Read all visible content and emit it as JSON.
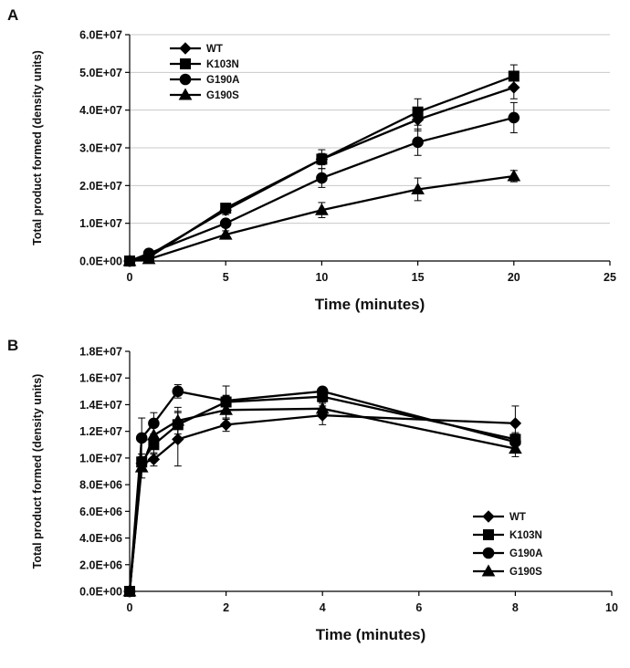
{
  "chart_data": [
    {
      "panel": "A",
      "type": "line",
      "title": "",
      "xlabel": "Time (minutes)",
      "ylabel": "Total product formed (density units)",
      "xlim": [
        0,
        25
      ],
      "ylim": [
        0,
        60000000
      ],
      "xticks": [
        0,
        5,
        10,
        15,
        20,
        25
      ],
      "xtick_labels": [
        "0",
        "5",
        "10",
        "15",
        "20",
        "25"
      ],
      "yticks": [
        0,
        10000000,
        20000000,
        30000000,
        40000000,
        50000000,
        60000000
      ],
      "ytick_labels": [
        "0.0E+00",
        "1.0E+07",
        "2.0E+07",
        "3.0E+07",
        "4.0E+07",
        "5.0E+07",
        "6.0E+07"
      ],
      "grid": true,
      "legend_position": "top-left",
      "x": [
        0,
        1,
        5,
        10,
        15,
        20
      ],
      "series": [
        {
          "name": "WT",
          "marker": "diamond",
          "values": [
            0,
            1500000,
            13500000,
            27000000,
            37500000,
            46000000
          ],
          "errors": [
            0,
            500000,
            1200000,
            1500000,
            3000000,
            3000000
          ]
        },
        {
          "name": "K103N",
          "marker": "square",
          "values": [
            0,
            1000000,
            14000000,
            27000000,
            39500000,
            49000000
          ],
          "errors": [
            0,
            500000,
            1200000,
            2500000,
            3500000,
            3000000
          ]
        },
        {
          "name": "G190A",
          "marker": "circle",
          "values": [
            0,
            2000000,
            10000000,
            22000000,
            31500000,
            38000000
          ],
          "errors": [
            0,
            800000,
            1000000,
            2500000,
            3500000,
            4000000
          ]
        },
        {
          "name": "G190S",
          "marker": "triangle",
          "values": [
            0,
            500000,
            7000000,
            13500000,
            19000000,
            22500000
          ],
          "errors": [
            0,
            300000,
            1000000,
            2000000,
            3000000,
            1500000
          ]
        }
      ]
    },
    {
      "panel": "B",
      "type": "line",
      "title": "",
      "xlabel": "Time (minutes)",
      "ylabel": "Total product formed (density units)",
      "xlim": [
        0,
        10
      ],
      "ylim": [
        0,
        18000000
      ],
      "xticks": [
        0,
        2,
        4,
        6,
        8,
        10
      ],
      "xtick_labels": [
        "0",
        "2",
        "4",
        "6",
        "8",
        "10"
      ],
      "yticks": [
        0,
        2000000,
        4000000,
        6000000,
        8000000,
        10000000,
        12000000,
        14000000,
        16000000,
        18000000
      ],
      "ytick_labels": [
        "0.0E+00",
        "2.0E+06",
        "4.0E+06",
        "6.0E+06",
        "8.0E+06",
        "1.0E+07",
        "1.2E+07",
        "1.4E+07",
        "1.6E+07",
        "1.8E+07"
      ],
      "grid": false,
      "legend_position": "bottom-right",
      "x": [
        0,
        0.25,
        0.5,
        1,
        2,
        4,
        8
      ],
      "series": [
        {
          "name": "WT",
          "marker": "diamond",
          "values": [
            0,
            9600000,
            9900000,
            11400000,
            12500000,
            13200000,
            12600000
          ],
          "errors": [
            0,
            400000,
            500000,
            2000000,
            500000,
            700000,
            1300000
          ]
        },
        {
          "name": "K103N",
          "marker": "square",
          "values": [
            0,
            9700000,
            11000000,
            12500000,
            14200000,
            14600000,
            11400000
          ],
          "errors": [
            0,
            600000,
            700000,
            1000000,
            1200000,
            500000,
            500000
          ]
        },
        {
          "name": "G190A",
          "marker": "circle",
          "values": [
            0,
            11500000,
            12600000,
            15000000,
            14300000,
            15000000,
            11200000
          ],
          "errors": [
            0,
            1500000,
            800000,
            500000,
            400000,
            300000,
            600000
          ]
        },
        {
          "name": "G190S",
          "marker": "triangle",
          "values": [
            0,
            9300000,
            11700000,
            12800000,
            13600000,
            13700000,
            10700000
          ],
          "errors": [
            0,
            800000,
            700000,
            1000000,
            700000,
            500000,
            600000
          ]
        }
      ]
    }
  ]
}
